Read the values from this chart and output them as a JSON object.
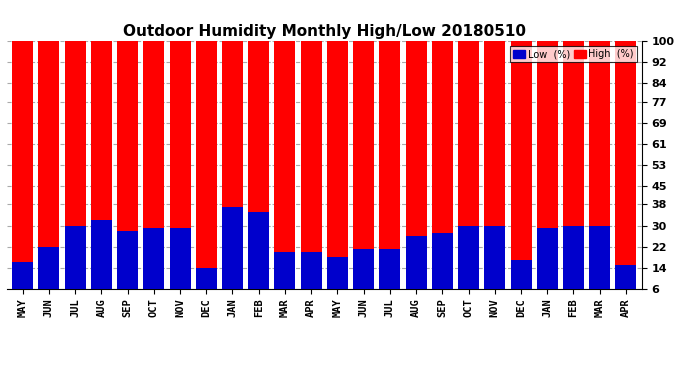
{
  "title": "Outdoor Humidity Monthly High/Low 20180510",
  "background_color": "#ffffff",
  "plot_bg_color": "#ffffff",
  "categories": [
    "MAY",
    "JUN",
    "JUL",
    "AUG",
    "SEP",
    "OCT",
    "NOV",
    "DEC",
    "JAN",
    "FEB",
    "MAR",
    "APR",
    "MAY",
    "JUN",
    "JUL",
    "AUG",
    "SEP",
    "OCT",
    "NOV",
    "DEC",
    "JAN",
    "FEB",
    "MAR",
    "APR"
  ],
  "high_values": [
    100,
    100,
    100,
    100,
    100,
    100,
    100,
    100,
    100,
    100,
    100,
    100,
    100,
    100,
    100,
    100,
    100,
    100,
    100,
    100,
    100,
    100,
    100,
    100
  ],
  "low_values": [
    16,
    22,
    30,
    32,
    28,
    29,
    29,
    14,
    37,
    35,
    20,
    20,
    18,
    21,
    21,
    26,
    27,
    30,
    30,
    17,
    29,
    30,
    30,
    15
  ],
  "high_color": "#ff0000",
  "low_color": "#0000cc",
  "yticks": [
    6,
    14,
    22,
    30,
    38,
    45,
    53,
    61,
    69,
    77,
    84,
    92,
    100
  ],
  "ylim": [
    6,
    100
  ],
  "grid_color": "#aaaaaa",
  "legend_low_label": "Low  (%)",
  "legend_high_label": "High  (%)"
}
